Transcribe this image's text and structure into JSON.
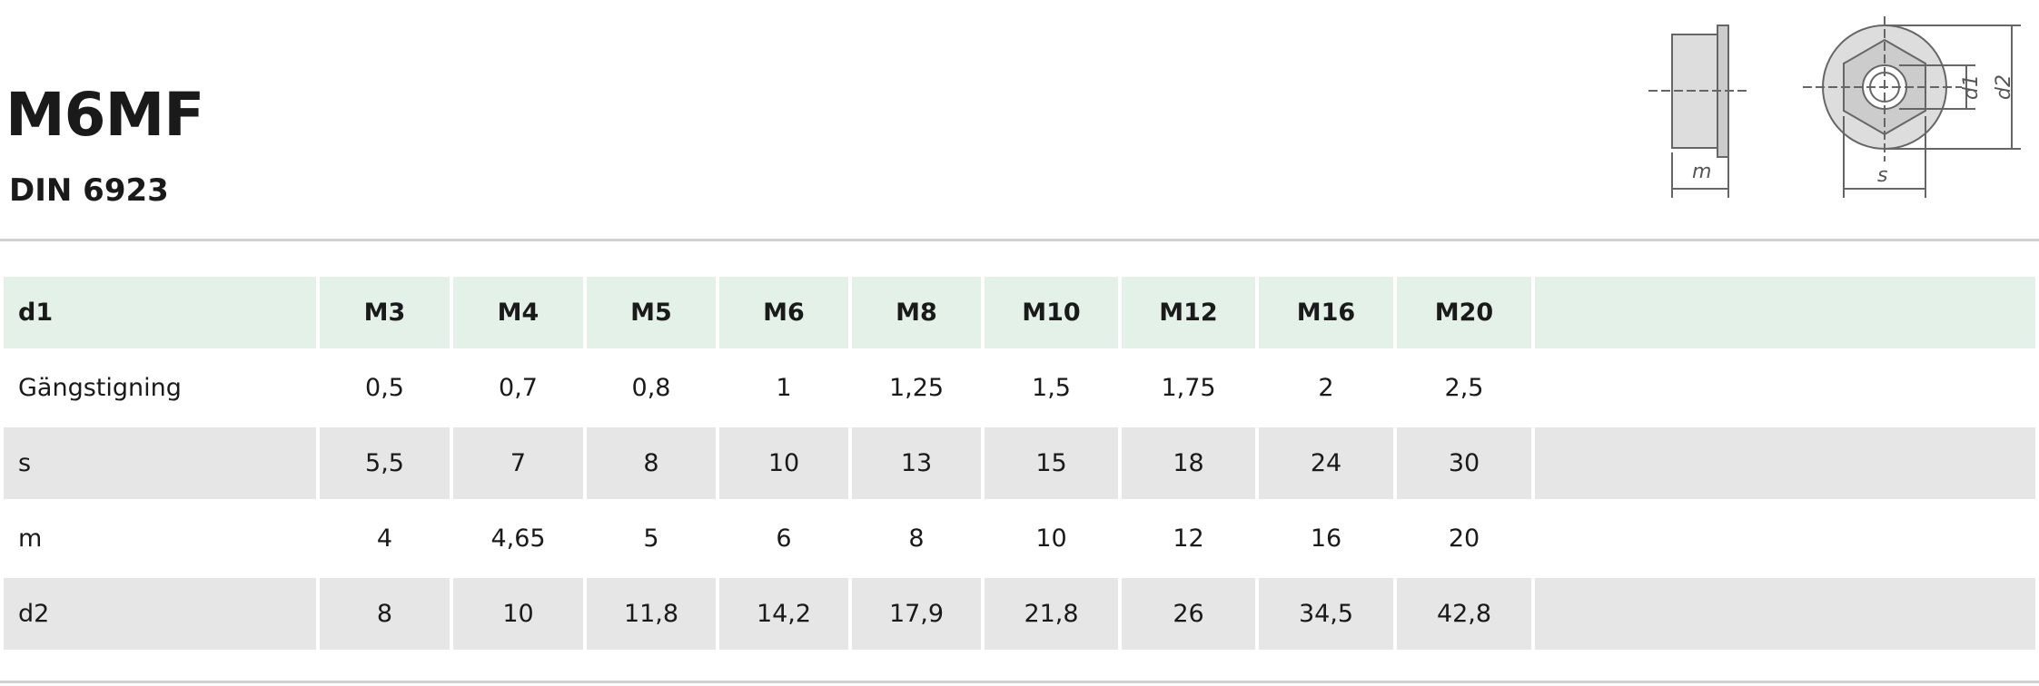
{
  "header": {
    "title": "M6MF",
    "subtitle": "DIN 6923"
  },
  "drawing": {
    "labels": [
      "m",
      "s",
      "d1",
      "d2"
    ]
  },
  "table": {
    "header": [
      "d1",
      "M3",
      "M4",
      "M5",
      "M6",
      "M8",
      "M10",
      "M12",
      "M16",
      "M20"
    ],
    "rows": [
      [
        "Gängstigning",
        "0,5",
        "0,7",
        "0,8",
        "1",
        "1,25",
        "1,5",
        "1,75",
        "2",
        "2,5"
      ],
      [
        "s",
        "5,5",
        "7",
        "8",
        "10",
        "13",
        "15",
        "18",
        "24",
        "30"
      ],
      [
        "m",
        "4",
        "4,65",
        "5",
        "6",
        "8",
        "10",
        "12",
        "16",
        "20"
      ],
      [
        "d2",
        "8",
        "10",
        "11,8",
        "14,2",
        "17,9",
        "21,8",
        "26",
        "34,5",
        "42,8"
      ]
    ]
  }
}
